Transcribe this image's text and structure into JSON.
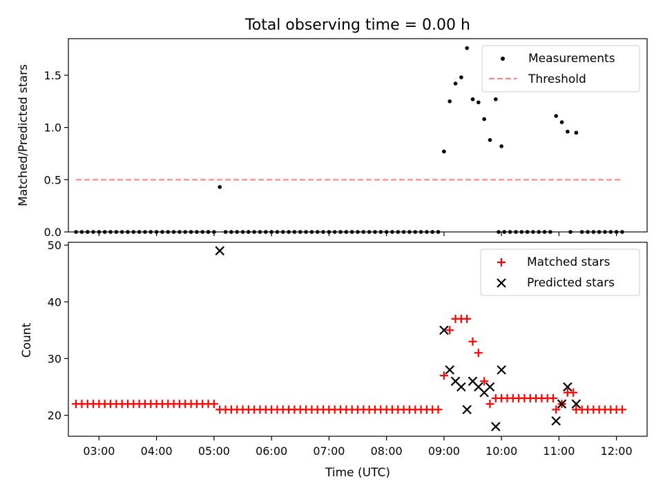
{
  "chart_data": [
    {
      "type": "scatter",
      "title": "Total observing time = 0.00 h",
      "ylabel": "Matched/Predicted stars",
      "xlabel": "",
      "xlim": [
        "02:28",
        "12:32"
      ],
      "ylim": [
        0,
        1.85
      ],
      "yticks": [
        0.0,
        0.5,
        1.0,
        1.5
      ],
      "ytick_labels": [
        "0.0",
        "0.5",
        "1.0",
        "1.5"
      ],
      "legend_position": "top-right",
      "series": [
        {
          "name": "Measurements",
          "kind": "points",
          "color": "#000000",
          "points": [
            [
              "02:36",
              0
            ],
            [
              "02:42",
              0
            ],
            [
              "02:48",
              0
            ],
            [
              "02:54",
              0
            ],
            [
              "03:00",
              0
            ],
            [
              "03:06",
              0
            ],
            [
              "03:12",
              0
            ],
            [
              "03:18",
              0
            ],
            [
              "03:24",
              0
            ],
            [
              "03:30",
              0
            ],
            [
              "03:36",
              0
            ],
            [
              "03:42",
              0
            ],
            [
              "03:48",
              0
            ],
            [
              "03:54",
              0
            ],
            [
              "04:00",
              0
            ],
            [
              "04:06",
              0
            ],
            [
              "04:12",
              0
            ],
            [
              "04:18",
              0
            ],
            [
              "04:24",
              0
            ],
            [
              "04:30",
              0
            ],
            [
              "04:36",
              0
            ],
            [
              "04:42",
              0
            ],
            [
              "04:48",
              0
            ],
            [
              "04:54",
              0
            ],
            [
              "05:00",
              0
            ],
            [
              "05:06",
              0.43
            ],
            [
              "05:12",
              0
            ],
            [
              "05:18",
              0
            ],
            [
              "05:24",
              0
            ],
            [
              "05:30",
              0
            ],
            [
              "05:36",
              0
            ],
            [
              "05:42",
              0
            ],
            [
              "05:48",
              0
            ],
            [
              "05:54",
              0
            ],
            [
              "06:00",
              0
            ],
            [
              "06:06",
              0
            ],
            [
              "06:12",
              0
            ],
            [
              "06:18",
              0
            ],
            [
              "06:24",
              0
            ],
            [
              "06:30",
              0
            ],
            [
              "06:36",
              0
            ],
            [
              "06:42",
              0
            ],
            [
              "06:48",
              0
            ],
            [
              "06:54",
              0
            ],
            [
              "07:00",
              0
            ],
            [
              "07:06",
              0
            ],
            [
              "07:12",
              0
            ],
            [
              "07:18",
              0
            ],
            [
              "07:24",
              0
            ],
            [
              "07:30",
              0
            ],
            [
              "07:36",
              0
            ],
            [
              "07:42",
              0
            ],
            [
              "07:48",
              0
            ],
            [
              "07:54",
              0
            ],
            [
              "08:00",
              0
            ],
            [
              "08:06",
              0
            ],
            [
              "08:12",
              0
            ],
            [
              "08:18",
              0
            ],
            [
              "08:24",
              0
            ],
            [
              "08:30",
              0
            ],
            [
              "08:36",
              0
            ],
            [
              "08:42",
              0
            ],
            [
              "08:48",
              0
            ],
            [
              "08:54",
              0
            ],
            [
              "09:00",
              0.77
            ],
            [
              "09:06",
              1.25
            ],
            [
              "09:12",
              1.42
            ],
            [
              "09:18",
              1.48
            ],
            [
              "09:24",
              1.76
            ],
            [
              "09:30",
              1.27
            ],
            [
              "09:36",
              1.24
            ],
            [
              "09:42",
              1.08
            ],
            [
              "09:48",
              0.88
            ],
            [
              "09:54",
              1.27
            ],
            [
              "10:00",
              0.82
            ],
            [
              "09:57",
              0
            ],
            [
              "10:03",
              0
            ],
            [
              "10:09",
              0
            ],
            [
              "10:15",
              0
            ],
            [
              "10:21",
              0
            ],
            [
              "10:27",
              0
            ],
            [
              "10:33",
              0
            ],
            [
              "10:39",
              0
            ],
            [
              "10:45",
              0
            ],
            [
              "10:51",
              0
            ],
            [
              "10:57",
              1.11
            ],
            [
              "11:03",
              1.05
            ],
            [
              "11:09",
              0.96
            ],
            [
              "11:12",
              0
            ],
            [
              "11:18",
              0.95
            ],
            [
              "11:24",
              0
            ],
            [
              "11:30",
              0
            ],
            [
              "11:36",
              0
            ],
            [
              "11:42",
              0
            ],
            [
              "11:48",
              0
            ],
            [
              "11:54",
              0
            ],
            [
              "12:00",
              0
            ],
            [
              "12:06",
              0
            ]
          ]
        },
        {
          "name": "Threshold",
          "kind": "dashed-line",
          "color": "#ff7f7f",
          "points": [
            [
              "02:36",
              0.5
            ],
            [
              "12:06",
              0.5
            ]
          ]
        }
      ]
    },
    {
      "type": "scatter",
      "title": "",
      "ylabel": "Count",
      "xlabel": "Time (UTC)",
      "xlim": [
        "02:28",
        "12:32"
      ],
      "ylim": [
        16.3,
        50.5
      ],
      "yticks": [
        20,
        30,
        40,
        50
      ],
      "ytick_labels": [
        "20",
        "30",
        "40",
        "50"
      ],
      "xticks": [
        "03:00",
        "04:00",
        "05:00",
        "06:00",
        "07:00",
        "08:00",
        "09:00",
        "10:00",
        "11:00",
        "12:00"
      ],
      "legend_position": "top-right",
      "series": [
        {
          "name": "Matched stars",
          "kind": "plus",
          "color": "#ff0000",
          "points": [
            [
              "02:36",
              22
            ],
            [
              "02:42",
              22
            ],
            [
              "02:48",
              22
            ],
            [
              "02:54",
              22
            ],
            [
              "03:00",
              22
            ],
            [
              "03:06",
              22
            ],
            [
              "03:12",
              22
            ],
            [
              "03:18",
              22
            ],
            [
              "03:24",
              22
            ],
            [
              "03:30",
              22
            ],
            [
              "03:36",
              22
            ],
            [
              "03:42",
              22
            ],
            [
              "03:48",
              22
            ],
            [
              "03:54",
              22
            ],
            [
              "04:00",
              22
            ],
            [
              "04:06",
              22
            ],
            [
              "04:12",
              22
            ],
            [
              "04:18",
              22
            ],
            [
              "04:24",
              22
            ],
            [
              "04:30",
              22
            ],
            [
              "04:36",
              22
            ],
            [
              "04:42",
              22
            ],
            [
              "04:48",
              22
            ],
            [
              "04:54",
              22
            ],
            [
              "05:00",
              22
            ],
            [
              "05:06",
              21
            ],
            [
              "05:12",
              21
            ],
            [
              "05:18",
              21
            ],
            [
              "05:24",
              21
            ],
            [
              "05:30",
              21
            ],
            [
              "05:36",
              21
            ],
            [
              "05:42",
              21
            ],
            [
              "05:48",
              21
            ],
            [
              "05:54",
              21
            ],
            [
              "06:00",
              21
            ],
            [
              "06:06",
              21
            ],
            [
              "06:12",
              21
            ],
            [
              "06:18",
              21
            ],
            [
              "06:24",
              21
            ],
            [
              "06:30",
              21
            ],
            [
              "06:36",
              21
            ],
            [
              "06:42",
              21
            ],
            [
              "06:48",
              21
            ],
            [
              "06:54",
              21
            ],
            [
              "07:00",
              21
            ],
            [
              "07:06",
              21
            ],
            [
              "07:12",
              21
            ],
            [
              "07:18",
              21
            ],
            [
              "07:24",
              21
            ],
            [
              "07:30",
              21
            ],
            [
              "07:36",
              21
            ],
            [
              "07:42",
              21
            ],
            [
              "07:48",
              21
            ],
            [
              "07:54",
              21
            ],
            [
              "08:00",
              21
            ],
            [
              "08:06",
              21
            ],
            [
              "08:12",
              21
            ],
            [
              "08:18",
              21
            ],
            [
              "08:24",
              21
            ],
            [
              "08:30",
              21
            ],
            [
              "08:36",
              21
            ],
            [
              "08:42",
              21
            ],
            [
              "08:48",
              21
            ],
            [
              "08:54",
              21
            ],
            [
              "09:00",
              27
            ],
            [
              "09:06",
              35
            ],
            [
              "09:12",
              37
            ],
            [
              "09:18",
              37
            ],
            [
              "09:24",
              37
            ],
            [
              "09:30",
              33
            ],
            [
              "09:36",
              31
            ],
            [
              "09:42",
              26
            ],
            [
              "09:48",
              22
            ],
            [
              "09:54",
              23
            ],
            [
              "10:00",
              23
            ],
            [
              "10:06",
              23
            ],
            [
              "10:12",
              23
            ],
            [
              "10:18",
              23
            ],
            [
              "10:24",
              23
            ],
            [
              "10:30",
              23
            ],
            [
              "10:36",
              23
            ],
            [
              "10:42",
              23
            ],
            [
              "10:48",
              23
            ],
            [
              "10:54",
              23
            ],
            [
              "10:57",
              21
            ],
            [
              "11:03",
              22
            ],
            [
              "11:09",
              24
            ],
            [
              "11:15",
              24
            ],
            [
              "11:18",
              21
            ],
            [
              "11:24",
              21
            ],
            [
              "11:30",
              21
            ],
            [
              "11:36",
              21
            ],
            [
              "11:42",
              21
            ],
            [
              "11:48",
              21
            ],
            [
              "11:54",
              21
            ],
            [
              "12:00",
              21
            ],
            [
              "12:06",
              21
            ]
          ]
        },
        {
          "name": "Predicted stars",
          "kind": "x",
          "color": "#000000",
          "points": [
            [
              "05:06",
              49
            ],
            [
              "09:00",
              35
            ],
            [
              "09:06",
              28
            ],
            [
              "09:12",
              26
            ],
            [
              "09:18",
              25
            ],
            [
              "09:24",
              21
            ],
            [
              "09:30",
              26
            ],
            [
              "09:36",
              25
            ],
            [
              "09:42",
              24
            ],
            [
              "09:48",
              25
            ],
            [
              "09:54",
              18
            ],
            [
              "10:00",
              28
            ],
            [
              "10:57",
              19
            ],
            [
              "11:03",
              22
            ],
            [
              "11:09",
              25
            ],
            [
              "11:18",
              22
            ]
          ]
        }
      ]
    }
  ]
}
